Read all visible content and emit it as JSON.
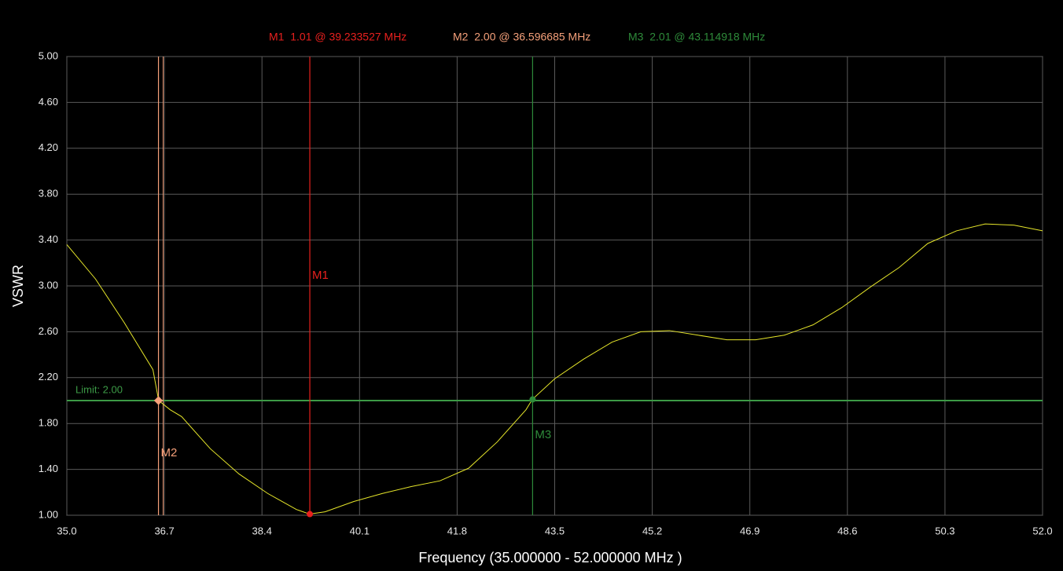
{
  "chart_data": {
    "type": "line",
    "x_label": "Frequency (35.000000 - 52.000000 MHz )",
    "y_label": "VSWR",
    "xlim": [
      35,
      52
    ],
    "ylim": [
      1,
      5
    ],
    "xticks": [
      {
        "value": 35,
        "label": "35.0"
      },
      36.7,
      38.4,
      40.1,
      41.8,
      43.5,
      45.2,
      46.9,
      48.6,
      50.3,
      {
        "value": 52,
        "label": "52.0"
      }
    ],
    "yticks": [
      {
        "value": 1,
        "label": "1.00"
      },
      {
        "value": 1.4,
        "label": "1.40"
      },
      {
        "value": 1.8,
        "label": "1.80"
      },
      {
        "value": 2.2,
        "label": "2.20"
      },
      {
        "value": 2.6,
        "label": "2.60"
      },
      {
        "value": 3,
        "label": "3.00"
      },
      {
        "value": 3.4,
        "label": "3.40"
      },
      {
        "value": 3.8,
        "label": "3.80"
      },
      {
        "value": 4.2,
        "label": "4.20"
      },
      {
        "value": 4.6,
        "label": "4.60"
      },
      {
        "value": 5,
        "label": "5.00"
      }
    ],
    "grid": true,
    "x": [
      35.0,
      35.5,
      36.0,
      36.5,
      36.6,
      36.8,
      37.0,
      37.5,
      38.0,
      38.5,
      39.0,
      39.23,
      39.5,
      40.0,
      40.5,
      41.0,
      41.5,
      42.0,
      42.5,
      43.0,
      43.11,
      43.5,
      44.0,
      44.5,
      45.0,
      45.5,
      46.0,
      46.5,
      47.0,
      47.5,
      48.0,
      48.5,
      49.0,
      49.5,
      50.0,
      50.5,
      51.0,
      51.5,
      52.0
    ],
    "series": [
      {
        "color": "#e6e62a",
        "values": [
          3.36,
          3.06,
          2.68,
          2.27,
          2.0,
          1.92,
          1.86,
          1.58,
          1.36,
          1.19,
          1.05,
          1.01,
          1.03,
          1.12,
          1.19,
          1.25,
          1.3,
          1.41,
          1.64,
          1.92,
          2.01,
          2.19,
          2.36,
          2.51,
          2.6,
          2.61,
          2.57,
          2.53,
          2.53,
          2.57,
          2.66,
          2.81,
          2.99,
          3.16,
          3.37,
          3.48,
          3.54,
          3.53,
          3.48
        ]
      }
    ],
    "limit": {
      "value": 2,
      "label": "Limit: 2.00",
      "color": "#3c9a46"
    },
    "markers": [
      {
        "name": "M1",
        "label": "M1  1.01 @ 39.233527 MHz",
        "value": 1.01,
        "x": 39.233527,
        "color": "#e8201e"
      },
      {
        "name": "M2",
        "label": "M2  2.00 @ 36.596685 MHz",
        "value": 2.0,
        "x": 36.596685,
        "color": "#f5a07a"
      },
      {
        "name": "M3",
        "label": "M3  2.01 @ 43.114918 MHz",
        "value": 2.01,
        "x": 43.114918,
        "color": "#2e8b3a"
      }
    ]
  }
}
